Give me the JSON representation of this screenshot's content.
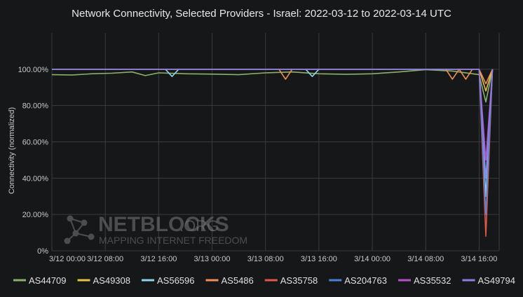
{
  "chart_data": {
    "type": "line",
    "title": "Network Connectivity, Selected Providers - Israel: 2022-03-12 to 2022-03-14 UTC",
    "ylabel": "Connectivity (normalized)",
    "xlabel": "",
    "ylim": [
      0,
      120
    ],
    "xlim": [
      "3/12 00:00",
      "3/14 19:00"
    ],
    "grid": true,
    "legend_position": "bottom",
    "x_ticks": [
      "3/12 00:00",
      "3/12 08:00",
      "3/12 16:00",
      "3/13 00:00",
      "3/13 08:00",
      "3/13 16:00",
      "3/14 00:00",
      "3/14 08:00",
      "3/14 16:00"
    ],
    "y_ticks": [
      "0%",
      "20.00%",
      "40.00%",
      "60.00%",
      "80.00%",
      "100.00%"
    ],
    "y_tick_values": [
      0,
      20,
      40,
      60,
      80,
      100
    ],
    "series": [
      {
        "name": "AS44709",
        "color": "#8ab26a",
        "points": [
          [
            "3/12 00:00",
            97
          ],
          [
            "3/12 03:00",
            96.8
          ],
          [
            "3/12 06:00",
            97.5
          ],
          [
            "3/12 09:00",
            97.8
          ],
          [
            "3/12 12:00",
            98.5
          ],
          [
            "3/12 14:00",
            96.5
          ],
          [
            "3/12 16:00",
            98
          ],
          [
            "3/12 20:00",
            97.5
          ],
          [
            "3/13 00:00",
            97.3
          ],
          [
            "3/13 04:00",
            97
          ],
          [
            "3/13 08:00",
            98
          ],
          [
            "3/13 12:00",
            98.5
          ],
          [
            "3/13 16:00",
            97.5
          ],
          [
            "3/13 20:00",
            97.2
          ],
          [
            "3/14 00:00",
            97.5
          ],
          [
            "3/14 04:00",
            98.5
          ],
          [
            "3/14 08:00",
            99.8
          ],
          [
            "3/14 12:00",
            99
          ],
          [
            "3/14 16:00",
            97
          ],
          [
            "3/14 17:00",
            82
          ],
          [
            "3/14 18:00",
            99.8
          ]
        ]
      },
      {
        "name": "AS49308",
        "color": "#e5c04c",
        "points": [
          [
            "3/12 00:00",
            100
          ],
          [
            "3/14 16:00",
            100
          ],
          [
            "3/14 17:00",
            88
          ],
          [
            "3/14 18:00",
            100
          ]
        ]
      },
      {
        "name": "AS56596",
        "color": "#8fd3ea",
        "points": [
          [
            "3/12 00:00",
            100
          ],
          [
            "3/12 17:00",
            100
          ],
          [
            "3/12 18:00",
            96
          ],
          [
            "3/12 19:00",
            100
          ],
          [
            "3/13 14:00",
            100
          ],
          [
            "3/13 15:00",
            96
          ],
          [
            "3/13 16:00",
            100
          ],
          [
            "3/14 16:00",
            100
          ],
          [
            "3/14 17:00",
            30
          ],
          [
            "3/14 18:00",
            100
          ]
        ]
      },
      {
        "name": "AS5486",
        "color": "#ef8f55",
        "points": [
          [
            "3/12 00:00",
            100
          ],
          [
            "3/13 10:00",
            100
          ],
          [
            "3/13 11:00",
            94.5
          ],
          [
            "3/13 12:00",
            100
          ],
          [
            "3/14 11:00",
            100
          ],
          [
            "3/14 12:00",
            94.5
          ],
          [
            "3/14 13:00",
            100
          ],
          [
            "3/14 14:00",
            94.5
          ],
          [
            "3/14 15:00",
            100
          ],
          [
            "3/14 16:00",
            100
          ],
          [
            "3/14 17:00",
            92
          ],
          [
            "3/14 18:00",
            100
          ]
        ]
      },
      {
        "name": "AS35758",
        "color": "#e05a48",
        "points": [
          [
            "3/12 00:00",
            100
          ],
          [
            "3/14 16:00",
            100
          ],
          [
            "3/14 17:00",
            8
          ],
          [
            "3/14 18:00",
            100
          ]
        ]
      },
      {
        "name": "AS204763",
        "color": "#4f7fd6",
        "points": [
          [
            "3/12 00:00",
            100
          ],
          [
            "3/14 16:00",
            100
          ],
          [
            "3/14 17:00",
            20
          ],
          [
            "3/14 18:00",
            100
          ]
        ]
      },
      {
        "name": "AS35532",
        "color": "#b454c6",
        "points": [
          [
            "3/12 00:00",
            100
          ],
          [
            "3/14 16:00",
            100
          ],
          [
            "3/14 17:00",
            50
          ],
          [
            "3/14 18:00",
            100
          ]
        ]
      },
      {
        "name": "AS49794",
        "color": "#8a80e0",
        "points": [
          [
            "3/12 00:00",
            100
          ],
          [
            "3/14 16:00",
            100
          ],
          [
            "3/14 17:00",
            40
          ],
          [
            "3/14 18:00",
            100
          ]
        ]
      }
    ]
  },
  "watermark": {
    "brand": "NETBLOCKS",
    "tld": ".ORG",
    "tagline": "MAPPING INTERNET FREEDOM"
  }
}
